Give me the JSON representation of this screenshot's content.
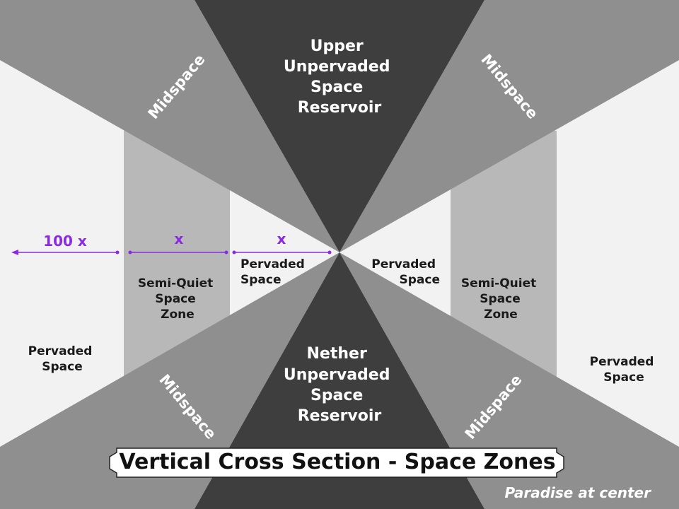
{
  "title": "Vertical Cross Section - Space Zones",
  "footer": "Paradise at center",
  "zones": {
    "upper_reservoir": [
      "Upper",
      "Unpervaded",
      "Space",
      "Reservoir"
    ],
    "nether_reservoir": [
      "Nether",
      "Unpervaded",
      "Space",
      "Reservoir"
    ],
    "midspace": "Midspace",
    "semi_quiet": [
      "Semi-Quiet",
      "Space",
      "Zone"
    ],
    "pervaded": [
      "Pervaded",
      "Space"
    ]
  },
  "measurements": {
    "outer": "100 x",
    "semi_quiet_width": "x",
    "pervaded_width": "x"
  },
  "colors": {
    "background": "#f2f2f2",
    "dark_wedge": "#3e3e3e",
    "midspace": "#8f8f8f",
    "semi_quiet": "#b8b8b8",
    "measure": "#8a2be2"
  }
}
